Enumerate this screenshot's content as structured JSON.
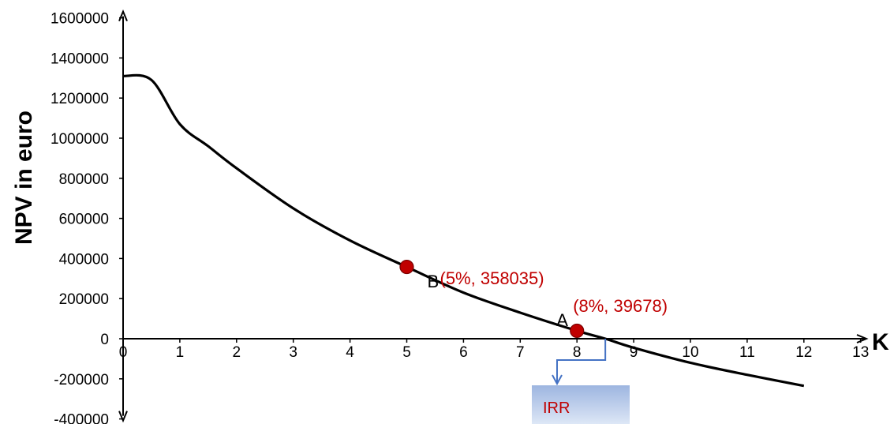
{
  "chart_data": {
    "type": "line",
    "title": "",
    "xlabel": "K",
    "ylabel": "NPV in euro",
    "xlim": [
      0,
      13
    ],
    "ylim": [
      -400000,
      1600000
    ],
    "x_ticks": [
      "0",
      "1",
      "2",
      "3",
      "4",
      "5",
      "6",
      "7",
      "8",
      "9",
      "10",
      "11",
      "12",
      "13"
    ],
    "y_ticks": [
      "-400000",
      "-200000",
      "0",
      "200000",
      "400000",
      "600000",
      "800000",
      "1000000",
      "1200000",
      "1400000",
      "1600000"
    ],
    "grid": false,
    "series": [
      {
        "x": [
          0,
          0.5,
          1,
          1.5,
          2,
          3,
          4,
          5,
          6,
          7,
          8,
          8.5,
          9,
          10,
          11,
          12
        ],
        "y": [
          1310000,
          1290000,
          1070000,
          960000,
          850000,
          650000,
          490000,
          358035,
          230000,
          130000,
          39678,
          0,
          -45000,
          -120000,
          -180000,
          -235000
        ],
        "color": "#000000"
      }
    ],
    "points": [
      {
        "name": "B",
        "x": 5,
        "y": 358035,
        "label": "(5%, 358035)",
        "color": "#c00000"
      },
      {
        "name": "A",
        "x": 8,
        "y": 39678,
        "label": "(8%, 39678)",
        "color": "#c00000"
      }
    ],
    "annotations": [
      {
        "text": "IRR",
        "x": 8.5,
        "color": "#c00000",
        "box_color": "#b4c7e7",
        "arrow_color": "#4472c4"
      }
    ]
  }
}
